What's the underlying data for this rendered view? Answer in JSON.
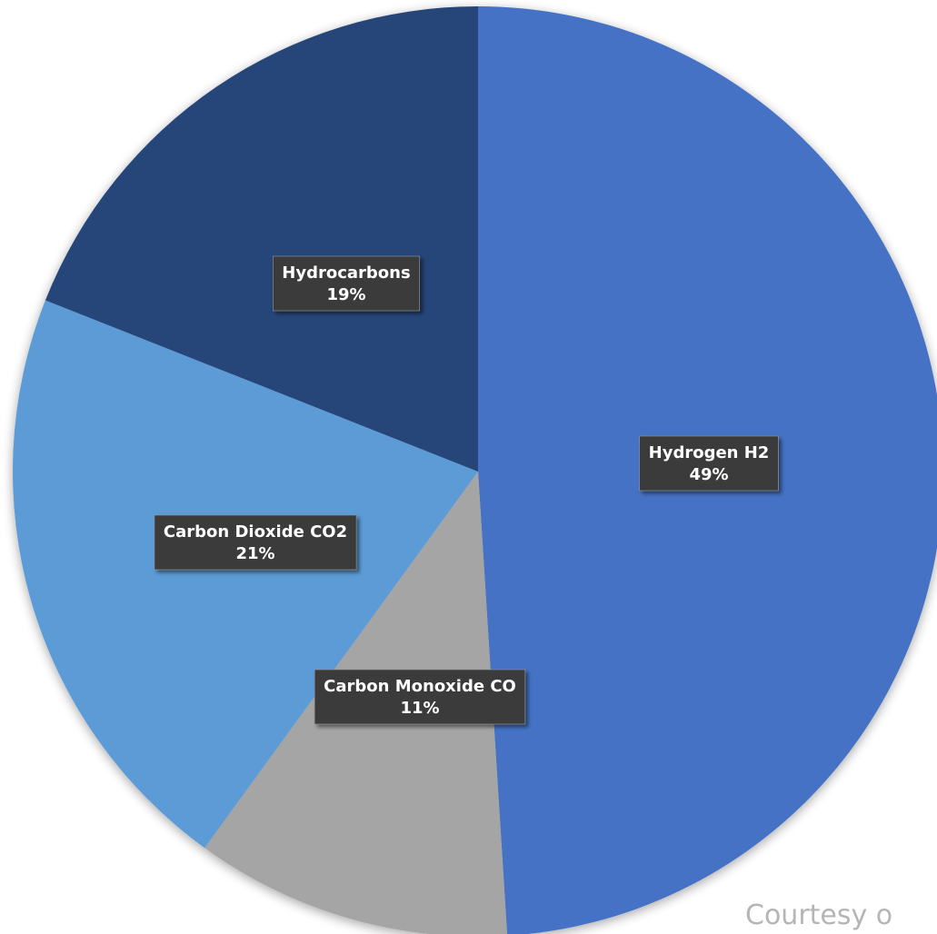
{
  "chart_data": {
    "type": "pie",
    "title": "",
    "slices": [
      {
        "label": "Hydrogen H2",
        "value": 49,
        "value_label": "49%",
        "color": "#4472c4"
      },
      {
        "label": "Carbon Monoxide CO",
        "value": 11,
        "value_label": "11%",
        "color": "#a5a5a5"
      },
      {
        "label": "Carbon Dioxide CO2",
        "value": 21,
        "value_label": "21%",
        "color": "#5b9bd5"
      },
      {
        "label": "Hydrocarbons",
        "value": 19,
        "value_label": "19%",
        "color": "#264478"
      }
    ],
    "start_angle": "12 o'clock",
    "direction": "clockwise",
    "legend": "none",
    "data_labels": "inside, dark callout boxes"
  },
  "credit_text": "Courtesy o"
}
